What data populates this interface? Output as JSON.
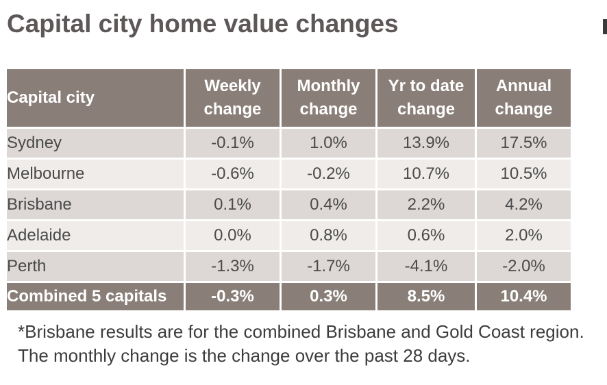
{
  "title": "Capital city home value changes",
  "chart_data": {
    "type": "table",
    "columns": [
      "Capital city",
      "Weekly change",
      "Monthly change",
      "Yr to date change",
      "Annual change"
    ],
    "header_lines": [
      [
        "Capital city"
      ],
      [
        "Weekly",
        "change"
      ],
      [
        "Monthly",
        "change"
      ],
      [
        "Yr to date",
        "change"
      ],
      [
        "Annual",
        "change"
      ]
    ],
    "rows": [
      [
        "Sydney",
        "-0.1%",
        "1.0%",
        "13.9%",
        "17.5%"
      ],
      [
        "Melbourne",
        "-0.6%",
        "-0.2%",
        "10.7%",
        "10.5%"
      ],
      [
        "Brisbane",
        "0.1%",
        "0.4%",
        "2.2%",
        "4.2%"
      ],
      [
        "Adelaide",
        "0.0%",
        "0.8%",
        "0.6%",
        "2.0%"
      ],
      [
        "Perth",
        "-1.3%",
        "-1.7%",
        "-4.1%",
        "-2.0%"
      ]
    ],
    "total_row": [
      "Combined 5 capitals",
      "-0.3%",
      "0.3%",
      "8.5%",
      "10.4%"
    ]
  },
  "footnote": "*Brisbane results are for the combined Brisbane and Gold Coast region. The monthly change is the change over the past 28 days.",
  "colors": {
    "header_bg": "#8a7f78",
    "row_dark": "#ddd8d6",
    "row_light": "#efecea",
    "title_text": "#5d5757"
  }
}
